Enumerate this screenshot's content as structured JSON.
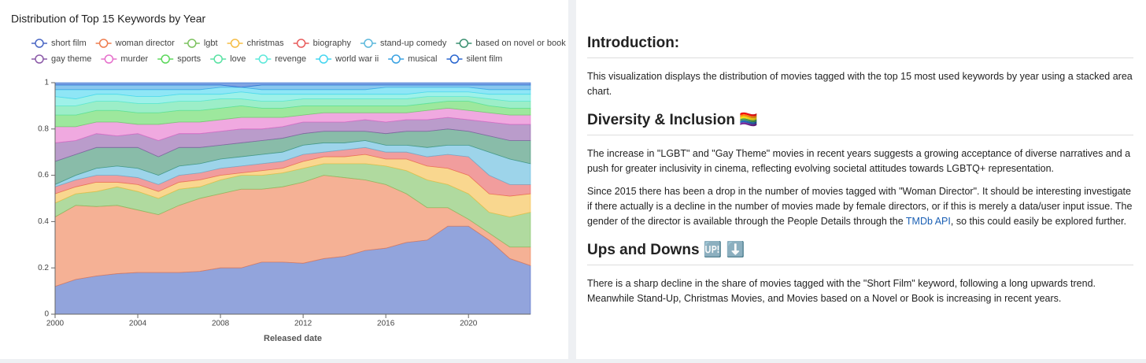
{
  "chart_data": {
    "type": "stacked-area",
    "title": "Distribution of Top 15 Keywords by Year",
    "x_label": "Released date",
    "x": [
      2000,
      2001,
      2002,
      2003,
      2004,
      2005,
      2006,
      2007,
      2008,
      2009,
      2010,
      2011,
      2012,
      2013,
      2014,
      2015,
      2016,
      2017,
      2018,
      2019,
      2020,
      2021,
      2022,
      2023
    ],
    "xlim": [
      2000,
      2023
    ],
    "xticks": [
      2000,
      2004,
      2008,
      2012,
      2016,
      2020
    ],
    "ylim": [
      0,
      1
    ],
    "yticks": [
      0,
      0.2,
      0.4,
      0.6,
      0.8,
      1
    ],
    "grid": false,
    "series": [
      {
        "name": "short film",
        "color": "#4a67c4",
        "values": [
          0.12,
          0.15,
          0.165,
          0.175,
          0.18,
          0.18,
          0.18,
          0.185,
          0.2,
          0.2,
          0.225,
          0.225,
          0.22,
          0.24,
          0.25,
          0.275,
          0.285,
          0.31,
          0.32,
          0.38,
          0.38,
          0.32,
          0.24,
          0.21
        ]
      },
      {
        "name": "woman director",
        "color": "#ee7d4f",
        "values": [
          0.3,
          0.32,
          0.3,
          0.295,
          0.27,
          0.25,
          0.29,
          0.315,
          0.32,
          0.34,
          0.315,
          0.325,
          0.35,
          0.36,
          0.34,
          0.305,
          0.275,
          0.21,
          0.14,
          0.08,
          0.03,
          0.03,
          0.05,
          0.08
        ]
      },
      {
        "name": "lgbt",
        "color": "#7cc25f",
        "values": [
          0.06,
          0.05,
          0.065,
          0.08,
          0.08,
          0.07,
          0.07,
          0.05,
          0.06,
          0.06,
          0.06,
          0.06,
          0.06,
          0.05,
          0.06,
          0.07,
          0.08,
          0.1,
          0.12,
          0.1,
          0.11,
          0.09,
          0.13,
          0.15
        ]
      },
      {
        "name": "christmas",
        "color": "#f5bd45",
        "values": [
          0.04,
          0.03,
          0.04,
          0.02,
          0.03,
          0.03,
          0.03,
          0.03,
          0.02,
          0.01,
          0.02,
          0.02,
          0.03,
          0.03,
          0.03,
          0.04,
          0.03,
          0.05,
          0.06,
          0.07,
          0.08,
          0.08,
          0.09,
          0.08
        ]
      },
      {
        "name": "biography",
        "color": "#e85b5b",
        "values": [
          0.03,
          0.03,
          0.03,
          0.03,
          0.03,
          0.03,
          0.03,
          0.03,
          0.03,
          0.03,
          0.03,
          0.03,
          0.03,
          0.02,
          0.03,
          0.03,
          0.03,
          0.03,
          0.04,
          0.06,
          0.08,
          0.08,
          0.05,
          0.04
        ]
      },
      {
        "name": "stand-up comedy",
        "color": "#5cb8dc",
        "values": [
          0.01,
          0.02,
          0.03,
          0.04,
          0.04,
          0.04,
          0.04,
          0.04,
          0.04,
          0.04,
          0.04,
          0.04,
          0.04,
          0.04,
          0.03,
          0.03,
          0.03,
          0.03,
          0.04,
          0.04,
          0.05,
          0.1,
          0.11,
          0.09
        ]
      },
      {
        "name": "based on novel or book",
        "color": "#3a9070",
        "values": [
          0.1,
          0.09,
          0.09,
          0.08,
          0.09,
          0.08,
          0.08,
          0.07,
          0.06,
          0.06,
          0.06,
          0.06,
          0.05,
          0.05,
          0.05,
          0.04,
          0.05,
          0.06,
          0.07,
          0.07,
          0.06,
          0.07,
          0.08,
          0.1
        ]
      },
      {
        "name": "gay theme",
        "color": "#8c5aa8",
        "values": [
          0.08,
          0.06,
          0.06,
          0.05,
          0.06,
          0.07,
          0.06,
          0.06,
          0.06,
          0.06,
          0.05,
          0.05,
          0.05,
          0.04,
          0.04,
          0.05,
          0.05,
          0.05,
          0.05,
          0.05,
          0.05,
          0.06,
          0.07,
          0.07
        ]
      },
      {
        "name": "murder",
        "color": "#e670cc",
        "values": [
          0.07,
          0.06,
          0.05,
          0.06,
          0.04,
          0.07,
          0.05,
          0.05,
          0.05,
          0.05,
          0.05,
          0.04,
          0.03,
          0.04,
          0.04,
          0.03,
          0.04,
          0.03,
          0.04,
          0.04,
          0.04,
          0.04,
          0.04,
          0.04
        ]
      },
      {
        "name": "sports",
        "color": "#5cd85c",
        "values": [
          0.05,
          0.05,
          0.05,
          0.05,
          0.05,
          0.05,
          0.05,
          0.05,
          0.05,
          0.05,
          0.04,
          0.04,
          0.04,
          0.03,
          0.03,
          0.03,
          0.03,
          0.03,
          0.03,
          0.03,
          0.04,
          0.03,
          0.03,
          0.03
        ]
      },
      {
        "name": "love",
        "color": "#5ae2a4",
        "values": [
          0.04,
          0.04,
          0.04,
          0.04,
          0.04,
          0.04,
          0.04,
          0.04,
          0.04,
          0.03,
          0.03,
          0.03,
          0.03,
          0.03,
          0.03,
          0.03,
          0.03,
          0.03,
          0.03,
          0.02,
          0.02,
          0.03,
          0.03,
          0.03
        ]
      },
      {
        "name": "revenge",
        "color": "#5de8da",
        "values": [
          0.04,
          0.03,
          0.03,
          0.03,
          0.03,
          0.03,
          0.03,
          0.03,
          0.02,
          0.03,
          0.03,
          0.03,
          0.02,
          0.02,
          0.02,
          0.02,
          0.02,
          0.02,
          0.02,
          0.02,
          0.02,
          0.02,
          0.03,
          0.03
        ]
      },
      {
        "name": "world war ii",
        "color": "#45d6f0",
        "values": [
          0.03,
          0.04,
          0.02,
          0.02,
          0.03,
          0.03,
          0.02,
          0.02,
          0.03,
          0.02,
          0.02,
          0.02,
          0.02,
          0.02,
          0.02,
          0.02,
          0.03,
          0.03,
          0.02,
          0.02,
          0.02,
          0.02,
          0.02,
          0.02
        ]
      },
      {
        "name": "musical",
        "color": "#3aa2e2",
        "values": [
          0.02,
          0.02,
          0.02,
          0.02,
          0.02,
          0.02,
          0.02,
          0.02,
          0.01,
          0,
          0.02,
          0.02,
          0.02,
          0.02,
          0.02,
          0.02,
          0.01,
          0.01,
          0.01,
          0.01,
          0.01,
          0.02,
          0.02,
          0.02
        ]
      },
      {
        "name": "silent film",
        "color": "#2a66cf",
        "values": [
          0.01,
          0.01,
          0.01,
          0.01,
          0.01,
          0.01,
          0.01,
          0.01,
          0.01,
          0.02,
          0.01,
          0.01,
          0.01,
          0.01,
          0.01,
          0.01,
          0.01,
          0.01,
          0.01,
          0.01,
          0.01,
          0.01,
          0.01,
          0.01
        ]
      }
    ]
  },
  "article": {
    "sections": [
      {
        "heading": "Introduction:",
        "paragraphs": [
          {
            "text": "This visualization displays the distribution of movies tagged with the top 15 most used keywords by year using a stacked area chart."
          }
        ]
      },
      {
        "heading": "Diversity & Inclusion 🏳️‍🌈",
        "paragraphs": [
          {
            "text": "The increase in \"LGBT\" and \"Gay Theme\" movies in recent years suggests a growing acceptance of diverse narratives and a push for greater inclusivity in cinema, reflecting evolving societal attitudes towards LGBTQ+ representation."
          },
          {
            "text": "Since 2015 there has been a drop in the number of movies tagged with \"Woman Director\". It should be interesting investigate if there actually is a decline in the number of movies made by female directors, or if this is merely a data/user input issue. The gender of the director is available through the People Details through the ",
            "link": "TMDb API",
            "after": ", so this could easily be explored further."
          }
        ]
      },
      {
        "heading": "Ups and Downs 🆙 ⬇️",
        "paragraphs": [
          {
            "text": "There is a sharp decline in the share of movies tagged with the \"Short Film\" keyword, following a long upwards trend. Meanwhile Stand-Up, Christmas Movies, and Movies based on a Novel or Book is increasing in recent years."
          }
        ]
      }
    ]
  }
}
